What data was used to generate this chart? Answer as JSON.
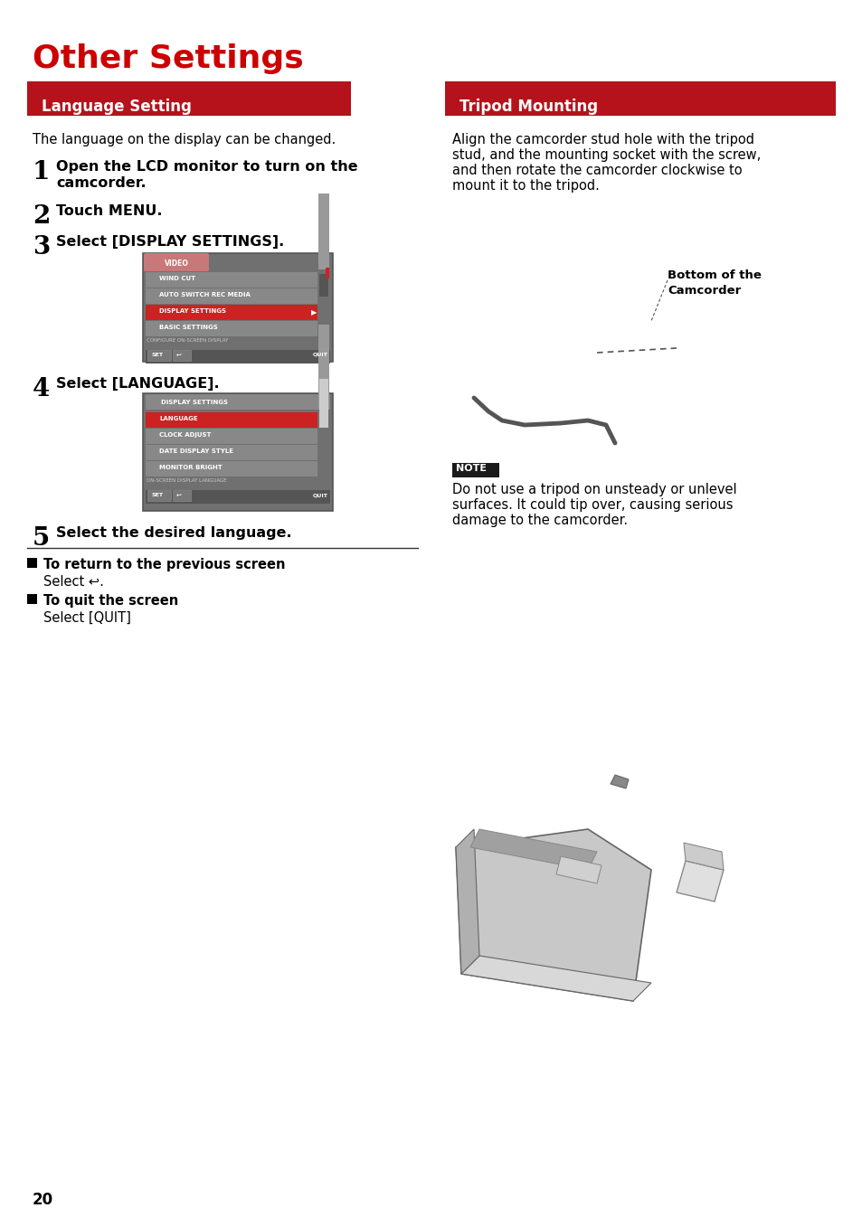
{
  "page_bg": "#ffffff",
  "title": "Other Settings",
  "title_color": "#cc0000",
  "title_fontsize": 26,
  "section_bg": "#b5121b",
  "section_text_color": "#ffffff",
  "section_left": "Language Setting",
  "section_right": "Tripod Mounting",
  "section_fontsize": 12,
  "body_color": "#000000",
  "body_fontsize": 10.5,
  "step_num_fontsize": 20,
  "step_bold_fontsize": 11.5,
  "lang_intro": "The language on the display can be changed.",
  "tripod_intro_lines": [
    "Align the camcorder stud hole with the tripod",
    "stud, and the mounting socket with the screw,",
    "and then rotate the camcorder clockwise to",
    "mount it to the tripod."
  ],
  "bottom_of_camcorder_label": "Bottom of the\nCamcorder",
  "note_label": "NOTE",
  "note_text_lines": [
    "Do not use a tripod on unsteady or unlevel",
    "surfaces. It could tip over, causing serious",
    "damage to the camcorder."
  ],
  "return_bold": "To return to the previous screen",
  "return_text": "Select ↩.",
  "quit_bold": "To quit the screen",
  "quit_text": "Select [QUIT]",
  "page_number": "20"
}
